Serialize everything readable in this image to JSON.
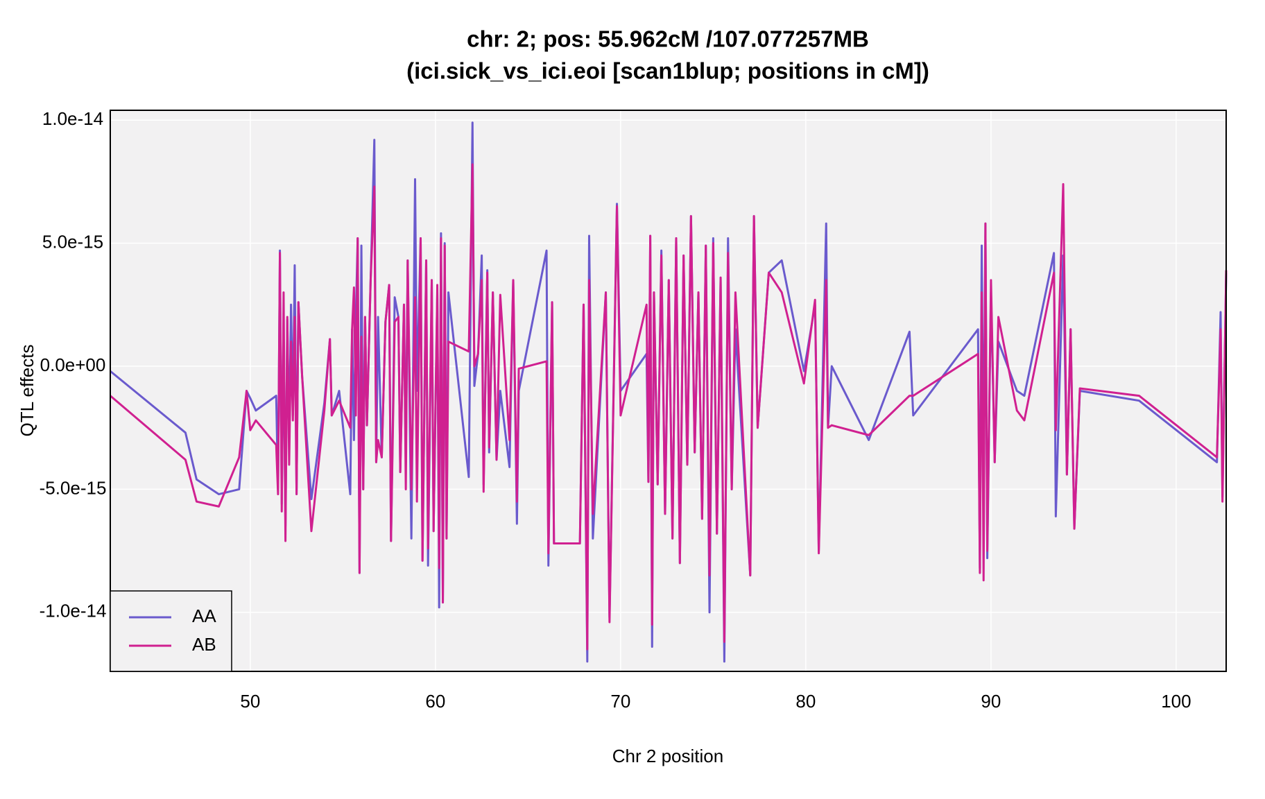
{
  "chart_data": {
    "type": "line",
    "title": "chr: 2; pos: 55.962cM /107.077257MB",
    "subtitle": "(ici.sick_vs_ici.eoi [scan1blup; positions in cM])",
    "x_label": "Chr 2 position",
    "y_label": "QTL effects",
    "xlim": [
      42.44,
      102.7
    ],
    "ylim": [
      -1.24e-14,
      1.04e-14
    ],
    "xticks": [
      50,
      60,
      70,
      80,
      90,
      100
    ],
    "yticks": [
      {
        "value": 1e-14,
        "label": "1.0e-14"
      },
      {
        "value": 5e-15,
        "label": "5.0e-15"
      },
      {
        "value": 0,
        "label": "0.0e+00"
      },
      {
        "value": -5e-15,
        "label": "-5.0e-15"
      },
      {
        "value": -1e-14,
        "label": "-1.0e-14"
      }
    ],
    "grid": true,
    "legend": "bottom-left",
    "x": [
      42.44,
      46.5,
      47.1,
      48.3,
      49.4,
      49.8,
      50.0,
      50.3,
      51.4,
      51.5,
      51.6,
      51.7,
      51.8,
      51.9,
      52.0,
      52.1,
      52.2,
      52.3,
      52.4,
      52.5,
      52.6,
      52.8,
      53.3,
      54.0,
      54.3,
      54.4,
      54.8,
      55.4,
      55.5,
      55.6,
      55.7,
      55.8,
      55.9,
      56.0,
      56.1,
      56.2,
      56.3,
      56.5,
      56.7,
      56.8,
      56.9,
      57.1,
      57.3,
      57.5,
      57.6,
      57.8,
      58.0,
      58.1,
      58.3,
      58.4,
      58.5,
      58.7,
      58.9,
      59.0,
      59.2,
      59.3,
      59.5,
      59.6,
      59.8,
      59.9,
      60.1,
      60.2,
      60.3,
      60.4,
      60.5,
      60.6,
      60.7,
      61.8,
      62.0,
      62.1,
      62.3,
      62.5,
      62.6,
      62.8,
      62.9,
      63.1,
      63.3,
      63.5,
      64.0,
      64.2,
      64.4,
      64.5,
      66.0,
      66.1,
      66.3,
      66.4,
      67.8,
      68.0,
      68.2,
      68.3,
      68.5,
      69.2,
      69.4,
      69.8,
      70.0,
      71.4,
      71.5,
      71.6,
      71.7,
      71.8,
      72.0,
      72.2,
      72.4,
      72.6,
      72.8,
      73.0,
      73.2,
      73.4,
      73.6,
      73.8,
      74.0,
      74.2,
      74.4,
      74.6,
      74.8,
      75.0,
      75.2,
      75.4,
      75.6,
      75.8,
      76.0,
      76.2,
      77.0,
      77.2,
      77.4,
      78.0,
      78.7,
      79.9,
      80.5,
      80.7,
      81.1,
      81.2,
      81.4,
      83.4,
      85.6,
      85.8,
      89.3,
      89.4,
      89.5,
      89.6,
      89.7,
      89.8,
      90.0,
      90.2,
      90.4,
      91.4,
      91.8,
      93.4,
      93.5,
      93.9,
      94.1,
      94.3,
      94.5,
      94.8,
      98.0,
      102.2,
      102.4,
      102.5,
      102.7
    ],
    "series": [
      {
        "name": "AA",
        "color": "#6a5acd",
        "values": [
          -2e-16,
          -2.7e-15,
          -4.6e-15,
          -5.2e-15,
          -5e-15,
          -1e-15,
          -1.3e-15,
          -1.8e-15,
          -1.2e-15,
          -5e-15,
          4.7e-15,
          -5.6e-15,
          1.5e-15,
          -6.5e-15,
          1.9e-15,
          -3e-15,
          2.5e-15,
          -2e-15,
          4.1e-15,
          -5.2e-15,
          2.6e-15,
          -4e-16,
          -5.4e-15,
          -1.5e-15,
          1.1e-15,
          -2e-15,
          -1e-15,
          -5.2e-15,
          1.5e-15,
          -3e-15,
          1.9e-15,
          5.2e-15,
          -8.4e-15,
          4.9e-15,
          -5e-15,
          2e-15,
          -2.4e-15,
          3.5e-15,
          9.2e-15,
          -3.9e-15,
          2e-15,
          -3.7e-15,
          1.8e-15,
          3.3e-15,
          -7.1e-15,
          2.8e-15,
          2e-15,
          -4.3e-15,
          2.5e-15,
          -4e-15,
          4.3e-15,
          -7e-15,
          7.6e-15,
          -1e-15,
          5.2e-15,
          -7.9e-15,
          4.3e-15,
          -8.1e-15,
          3.5e-15,
          -6.7e-15,
          3e-15,
          -9.8e-15,
          5.4e-15,
          -9.6e-15,
          5e-15,
          -7e-15,
          3e-15,
          -4.5e-15,
          9.9e-15,
          -8e-16,
          5e-16,
          4.5e-15,
          -4.8e-15,
          3.9e-15,
          -3.5e-15,
          3e-15,
          -3.8e-15,
          -1e-15,
          -4.1e-15,
          3.5e-15,
          -6.4e-15,
          -1e-15,
          4.7e-15,
          -8.1e-15,
          2.6e-15,
          -7.2e-15,
          -7.2e-15,
          2.5e-15,
          -1.2e-14,
          5.3e-15,
          -7e-15,
          3e-15,
          -1.02e-14,
          6.6e-15,
          -1e-15,
          5e-16,
          -4.7e-15,
          5.3e-15,
          -1.14e-14,
          3e-15,
          -4.8e-15,
          4.7e-15,
          -6e-15,
          3.5e-15,
          -7e-15,
          5.2e-15,
          -8e-15,
          4.5e-15,
          -4e-15,
          6.1e-15,
          -3.5e-15,
          3e-15,
          -6.2e-15,
          4.9e-15,
          -1e-14,
          5.2e-15,
          -6.8e-15,
          3.6e-15,
          -1.2e-14,
          5.2e-15,
          -5e-15,
          1.5e-15,
          -8.5e-15,
          6.1e-15,
          -2.5e-15,
          3.8e-15,
          4.3e-15,
          -2e-16,
          2.5e-15,
          -7.5e-15,
          5.8e-15,
          -2.5e-15,
          0.0,
          -3e-15,
          1.4e-15,
          -2e-15,
          1.5e-15,
          -8.2e-15,
          4.9e-15,
          -4.9e-15,
          5.8e-15,
          -7.8e-15,
          3e-15,
          -3.9e-15,
          1e-15,
          -1e-15,
          -1.2e-15,
          4.6e-15,
          -6.1e-15,
          4.5e-15,
          -4.4e-15,
          1.5e-15,
          -6.6e-15,
          -1e-15,
          -1.4e-15,
          -3.9e-15,
          2.2e-15,
          -5.3e-15,
          3.8e-15
        ]
      },
      {
        "name": "AB",
        "color": "#d02090",
        "values": [
          -1.2e-15,
          -3.8e-15,
          -5.5e-15,
          -5.7e-15,
          -3.7e-15,
          -1e-15,
          -2.6e-15,
          -2.2e-15,
          -3.2e-15,
          -5.2e-15,
          4.6e-15,
          -5.9e-15,
          3e-15,
          -7.1e-15,
          2e-15,
          -4e-15,
          1e-15,
          -2.2e-15,
          2e-15,
          -5.2e-15,
          2.6e-15,
          -4e-16,
          -6.7e-15,
          -1.8e-15,
          1.1e-15,
          -2e-15,
          -1.4e-15,
          -2.5e-15,
          1.5e-15,
          3.2e-15,
          -2e-15,
          5.2e-15,
          -8.4e-15,
          1.2e-15,
          -5e-15,
          2e-15,
          -2.4e-15,
          3.5e-15,
          7.3e-15,
          -3.9e-15,
          -3e-15,
          -3.7e-15,
          1.8e-15,
          3.3e-15,
          -7.1e-15,
          1.8e-15,
          2e-15,
          -4.3e-15,
          2.5e-15,
          -5e-15,
          4.3e-15,
          -5e-15,
          2.8e-15,
          -5.5e-15,
          5.2e-15,
          -7.9e-15,
          4.3e-15,
          -7.4e-15,
          3.5e-15,
          -6.7e-15,
          3.3e-15,
          -8.2e-15,
          5.2e-15,
          -9.6e-15,
          4.9e-15,
          -7e-15,
          1e-15,
          6e-16,
          8.2e-15,
          0.0,
          5e-16,
          3.5e-15,
          -5.1e-15,
          3.8e-15,
          -3.3e-15,
          3e-15,
          -3.8e-15,
          2.9e-15,
          -3e-15,
          3.5e-15,
          -5.5e-15,
          -1e-16,
          2e-16,
          -7.6e-15,
          2.6e-15,
          -7.2e-15,
          -7.2e-15,
          2.5e-15,
          -1.15e-14,
          3.5e-15,
          -6e-15,
          3e-15,
          -1.04e-14,
          6.5e-15,
          -2e-15,
          2.5e-15,
          -4.7e-15,
          5.3e-15,
          -1.05e-14,
          3e-15,
          -4.8e-15,
          4.5e-15,
          -6e-15,
          3.5e-15,
          -7e-15,
          5.2e-15,
          -8e-15,
          4.5e-15,
          -4e-15,
          6.1e-15,
          -3.5e-15,
          3e-15,
          -6.2e-15,
          4.9e-15,
          -8.5e-15,
          5e-15,
          -6.8e-15,
          3.6e-15,
          -1.12e-14,
          4.6e-15,
          -5e-15,
          3e-15,
          -8.5e-15,
          6.1e-15,
          -2.5e-15,
          3.8e-15,
          3e-15,
          -7e-16,
          2.7e-15,
          -7.6e-15,
          3.5e-15,
          -2.5e-15,
          -2.4e-15,
          -2.8e-15,
          -1.2e-15,
          -1.2e-15,
          5e-16,
          -8.4e-15,
          3e-15,
          -8.7e-15,
          5.8e-15,
          -7.5e-15,
          3.5e-15,
          -3.9e-15,
          2e-15,
          -1.8e-15,
          -2.2e-15,
          3.8e-15,
          -2.6e-15,
          7.4e-15,
          -4.4e-15,
          1.5e-15,
          -6.6e-15,
          -9e-16,
          -1.2e-15,
          -3.7e-15,
          1.5e-15,
          -5.5e-15,
          3.9e-15
        ]
      }
    ]
  }
}
